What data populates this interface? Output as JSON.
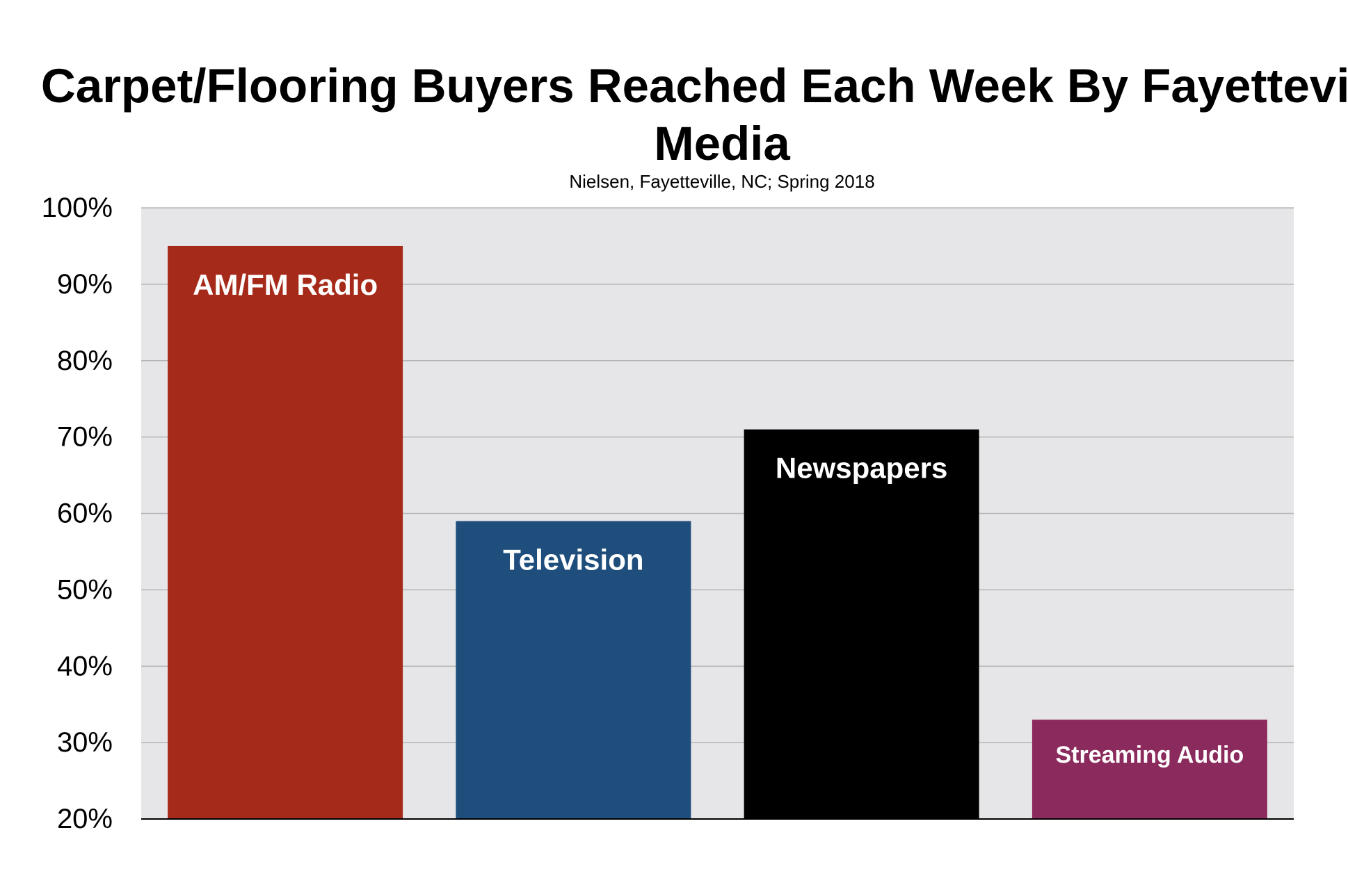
{
  "chart_data": {
    "type": "bar",
    "title": "Carpet/Flooring Buyers Reached Each Week By Fayetteville Media",
    "subtitle": "Nielsen, Fayetteville, NC; Spring 2018",
    "xlabel": "",
    "ylabel": "",
    "ylim": [
      20,
      100
    ],
    "yticks": [
      "20%",
      "30%",
      "40%",
      "50%",
      "60%",
      "70%",
      "80%",
      "90%",
      "100%"
    ],
    "grid": true,
    "legend": "none",
    "categories": [
      "AM/FM Radio",
      "Television",
      "Newspapers",
      "Streaming Audio"
    ],
    "values": [
      95,
      59,
      71,
      33
    ],
    "colors": [
      "#a52a19",
      "#1f4e7c",
      "#000000",
      "#8b2a5c"
    ],
    "plot_background": "#e6e6e8",
    "grid_color": "#b5b5b5"
  }
}
